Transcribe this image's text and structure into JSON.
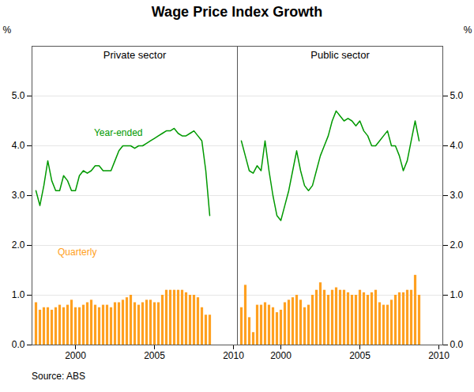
{
  "title": "Wage Price Index Growth",
  "caption": "Source: ABS",
  "chart_data": [
    {
      "type": "bar",
      "title": "Private sector",
      "ylabel": "%",
      "x": [
        1997.5,
        1997.75,
        1998,
        1998.25,
        1998.5,
        1998.75,
        1999,
        1999.25,
        1999.5,
        1999.75,
        2000,
        2000.25,
        2000.5,
        2000.75,
        2001,
        2001.25,
        2001.5,
        2001.75,
        2002,
        2002.25,
        2002.5,
        2002.75,
        2003,
        2003.25,
        2003.5,
        2003.75,
        2004,
        2004.25,
        2004.5,
        2004.75,
        2005,
        2005.25,
        2005.5,
        2005.75,
        2006,
        2006.25,
        2006.5,
        2006.75,
        2007,
        2007.25,
        2007.5,
        2007.75,
        2008,
        2008.25,
        2008.5
      ],
      "series": [
        {
          "type": "bar",
          "color": "#FFA020",
          "values": [
            0.85,
            0.7,
            0.75,
            0.75,
            0.7,
            0.75,
            0.8,
            0.75,
            0.8,
            0.9,
            0.75,
            0.75,
            0.8,
            0.85,
            0.9,
            0.8,
            0.75,
            0.8,
            0.8,
            0.75,
            0.85,
            0.85,
            0.9,
            0.95,
            1.0,
            0.85,
            0.8,
            0.85,
            0.9,
            0.9,
            0.85,
            0.85,
            1.0,
            1.1,
            1.1,
            1.1,
            1.1,
            1.1,
            1.05,
            1.0,
            1.0,
            0.95,
            0.75,
            0.6,
            0.6
          ]
        },
        {
          "type": "line",
          "color": "#009900",
          "values": [
            3.1,
            2.8,
            3.2,
            3.7,
            3.3,
            3.1,
            3.1,
            3.4,
            3.3,
            3.1,
            3.1,
            3.4,
            3.5,
            3.45,
            3.5,
            3.6,
            3.6,
            3.5,
            3.5,
            3.5,
            3.7,
            3.9,
            4.0,
            4.0,
            4.0,
            3.95,
            4.0,
            4.0,
            4.05,
            4.1,
            4.15,
            4.2,
            4.25,
            4.3,
            4.3,
            4.35,
            4.25,
            4.2,
            4.2,
            4.25,
            4.3,
            4.2,
            4.1,
            3.5,
            2.6
          ]
        }
      ],
      "annotations": [
        {
          "text": "Year-ended",
          "color": "#009900"
        },
        {
          "text": "Quarterly",
          "color": "#FFA020"
        }
      ],
      "xlim": [
        1997.25,
        2010.25
      ],
      "xticks": [
        2000,
        2005,
        2010
      ],
      "ylim": [
        0,
        6
      ],
      "yticks": [
        0,
        1,
        2,
        3,
        4,
        5
      ],
      "grid": true
    },
    {
      "type": "bar",
      "title": "Public sector",
      "ylabel": "%",
      "x": [
        1997.5,
        1997.75,
        1998,
        1998.25,
        1998.5,
        1998.75,
        1999,
        1999.25,
        1999.5,
        1999.75,
        2000,
        2000.25,
        2000.5,
        2000.75,
        2001,
        2001.25,
        2001.5,
        2001.75,
        2002,
        2002.25,
        2002.5,
        2002.75,
        2003,
        2003.25,
        2003.5,
        2003.75,
        2004,
        2004.25,
        2004.5,
        2004.75,
        2005,
        2005.25,
        2005.5,
        2005.75,
        2006,
        2006.25,
        2006.5,
        2006.75,
        2007,
        2007.25,
        2007.5,
        2007.75,
        2008,
        2008.25,
        2008.5,
        2008.75
      ],
      "series": [
        {
          "type": "bar",
          "color": "#FFA020",
          "values": [
            0.75,
            1.2,
            0.55,
            0.25,
            0.8,
            0.8,
            0.85,
            0.8,
            0.75,
            0.65,
            0.7,
            0.85,
            0.9,
            0.95,
            1.0,
            0.9,
            0.75,
            0.8,
            1.0,
            1.1,
            1.25,
            1.1,
            1.0,
            1.1,
            1.15,
            1.1,
            1.1,
            1.05,
            1.0,
            1.0,
            1.1,
            1.05,
            1.0,
            1.05,
            1.1,
            0.85,
            0.8,
            0.8,
            0.9,
            1.0,
            1.05,
            1.05,
            1.1,
            1.1,
            1.4,
            1.0
          ]
        },
        {
          "type": "line",
          "color": "#009900",
          "values": [
            4.1,
            3.8,
            3.5,
            3.45,
            3.6,
            3.5,
            4.1,
            3.5,
            3.0,
            2.6,
            2.5,
            2.8,
            3.1,
            3.5,
            3.9,
            3.5,
            3.2,
            3.1,
            3.2,
            3.5,
            3.8,
            4.0,
            4.2,
            4.5,
            4.7,
            4.6,
            4.5,
            4.55,
            4.5,
            4.4,
            4.5,
            4.3,
            4.2,
            4.0,
            4.0,
            4.1,
            4.2,
            4.3,
            4.0,
            4.0,
            3.8,
            3.5,
            3.7,
            4.1,
            4.5,
            4.1
          ]
        }
      ],
      "xlim": [
        1997.25,
        2010.25
      ],
      "xticks": [
        2000,
        2005,
        2010
      ],
      "ylim": [
        0,
        6
      ],
      "yticks": [
        0,
        1,
        2,
        3,
        4,
        5
      ],
      "grid": true
    }
  ]
}
